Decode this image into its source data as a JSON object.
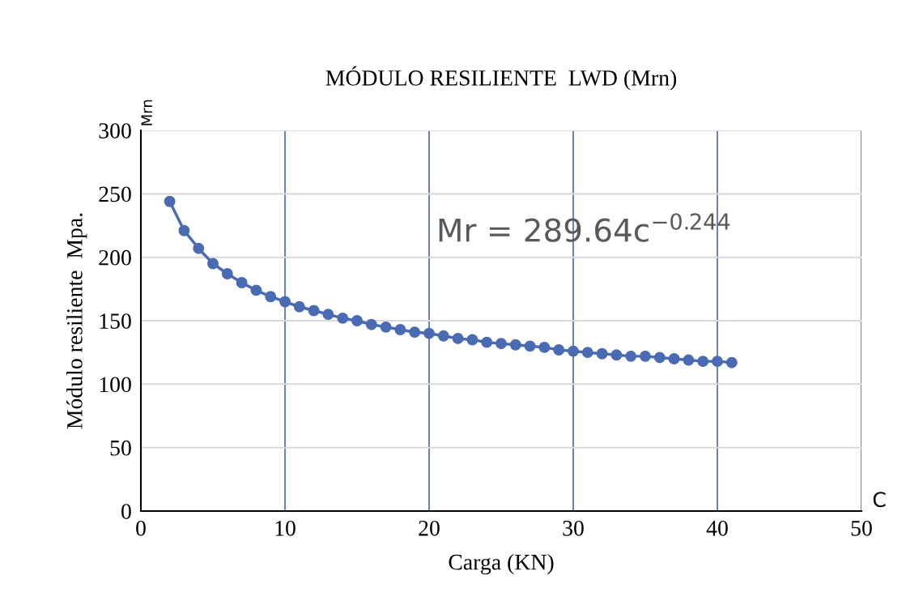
{
  "chart_data": {
    "type": "line",
    "title": "MÓDULO RESILIENTE  LWD (Mrn)",
    "xlabel": "Carga (KN)",
    "ylabel": "Módulo resiliente  Mpa.",
    "x": [
      2,
      3,
      4,
      5,
      6,
      7,
      8,
      9,
      10,
      11,
      12,
      13,
      14,
      15,
      16,
      17,
      18,
      19,
      20,
      21,
      22,
      23,
      24,
      25,
      26,
      27,
      28,
      29,
      30,
      31,
      32,
      33,
      34,
      35,
      36,
      37,
      38,
      39,
      40,
      41
    ],
    "series": [
      {
        "color": "#4a6bb3",
        "values": [
          244,
          221,
          207,
          195,
          187,
          180,
          174,
          169,
          165,
          161,
          158,
          155,
          152,
          150,
          147,
          145,
          143,
          141,
          140,
          138,
          136,
          135,
          133,
          132,
          131,
          130,
          129,
          127,
          126,
          125,
          124,
          123,
          122,
          122,
          121,
          120,
          119,
          118,
          118,
          117
        ]
      }
    ],
    "xlim": [
      0,
      50
    ],
    "xticks": [
      0,
      10,
      20,
      30,
      40,
      50
    ],
    "ylim": [
      0,
      300
    ],
    "yticks": [
      0,
      50,
      100,
      150,
      200,
      250,
      300
    ],
    "grid": true,
    "marker": "circle",
    "line_style": "solid",
    "legend": false,
    "annotations": [
      "Mr = 289.64c$^{−0.244}$",
      "Mrn",
      "C"
    ]
  }
}
